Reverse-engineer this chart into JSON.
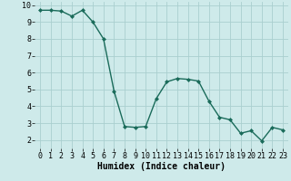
{
  "x": [
    0,
    1,
    2,
    3,
    4,
    5,
    6,
    7,
    8,
    9,
    10,
    11,
    12,
    13,
    14,
    15,
    16,
    17,
    18,
    19,
    20,
    21,
    22,
    23
  ],
  "y": [
    9.7,
    9.7,
    9.65,
    9.35,
    9.7,
    9.0,
    8.0,
    4.9,
    2.8,
    2.75,
    2.8,
    4.45,
    5.45,
    5.65,
    5.6,
    5.5,
    4.3,
    3.35,
    3.2,
    2.4,
    2.55,
    1.95,
    2.75,
    2.6
  ],
  "line_color": "#1a6b5a",
  "marker": "D",
  "markersize": 2.0,
  "linewidth": 1.0,
  "xlim": [
    -0.5,
    23.5
  ],
  "ylim": [
    1.5,
    10.2
  ],
  "yticks": [
    2,
    3,
    4,
    5,
    6,
    7,
    8,
    9,
    10
  ],
  "xticks": [
    0,
    1,
    2,
    3,
    4,
    5,
    6,
    7,
    8,
    9,
    10,
    11,
    12,
    13,
    14,
    15,
    16,
    17,
    18,
    19,
    20,
    21,
    22,
    23
  ],
  "xlabel": "Humidex (Indice chaleur)",
  "xlabel_fontsize": 7,
  "tick_fontsize": 6,
  "bg_color": "#ceeaea",
  "grid_color": "#aacfcf",
  "title": ""
}
